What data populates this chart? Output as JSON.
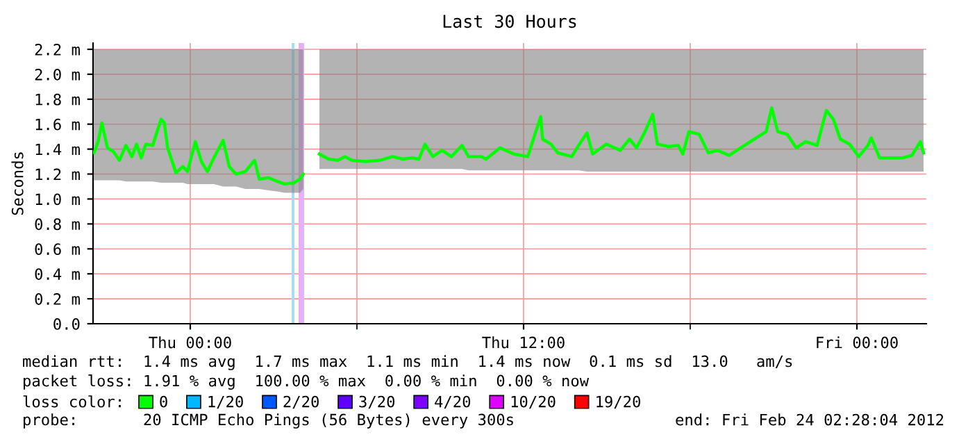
{
  "chart_data": {
    "type": "line",
    "title": "Last 30 Hours",
    "ylabel": "Seconds",
    "legend_title": "loss color:",
    "xlim": [
      "2012-02-22T20:30",
      "2012-02-24T02:30"
    ],
    "xticks": [
      {
        "value": "2012-02-23T00:00",
        "label": "Thu 00:00"
      },
      {
        "value": "2012-02-23T06:00",
        "label": null
      },
      {
        "value": "2012-02-23T12:00",
        "label": "Thu 12:00"
      },
      {
        "value": "2012-02-23T18:00",
        "label": null
      },
      {
        "value": "2012-02-24T00:00",
        "label": "Fri 00:00"
      }
    ],
    "ylim": [
      0,
      2.25
    ],
    "yticks": [
      {
        "value": 0,
        "label": "0.0"
      },
      {
        "value": 0.2,
        "label": "0.2 m"
      },
      {
        "value": 0.4,
        "label": "0.4 m"
      },
      {
        "value": 0.6,
        "label": "0.6 m"
      },
      {
        "value": 0.8,
        "label": "0.8 m"
      },
      {
        "value": 1.0,
        "label": "1.0 m"
      },
      {
        "value": 1.2,
        "label": "1.2 m"
      },
      {
        "value": 1.4,
        "label": "1.4 m"
      },
      {
        "value": 1.6,
        "label": "1.6 m"
      },
      {
        "value": 1.8,
        "label": "1.8 m"
      },
      {
        "value": 2.0,
        "label": "2.0 m"
      },
      {
        "value": 2.2,
        "label": "2.2 m"
      }
    ],
    "grid": true,
    "legend": "bottom",
    "marker": "none",
    "line_style": "solid",
    "series": [
      {
        "name": "0",
        "color": "#00ff00",
        "x": [
          "2012-02-22T20:32",
          "2012-02-22T20:41",
          "2012-02-22T20:49",
          "2012-02-22T21:01",
          "2012-02-22T21:14",
          "2012-02-22T21:27",
          "2012-02-22T21:41",
          "2012-02-22T21:54",
          "2012-02-22T22:04",
          "2012-02-22T22:14",
          "2012-02-22T22:24",
          "2012-02-22T22:39",
          "2012-02-22T22:57",
          "2012-02-22T23:04",
          "2012-02-22T23:11",
          "2012-02-22T23:21",
          "2012-02-22T23:29",
          "2012-02-22T23:44",
          "2012-02-22T23:54",
          "2012-02-23T00:11",
          "2012-02-23T00:24",
          "2012-02-23T00:37",
          "2012-02-23T00:51",
          "2012-02-23T01:11",
          "2012-02-23T01:24",
          "2012-02-23T01:39",
          "2012-02-23T01:59",
          "2012-02-23T02:19",
          "2012-02-23T02:29",
          "2012-02-23T02:49",
          "2012-02-23T03:09",
          "2012-02-23T03:24",
          "2012-02-23T03:44",
          "2012-02-23T03:57",
          "2012-02-23T04:04",
          "2012-02-23T04:20",
          "2012-02-23T04:39",
          "2012-02-23T04:59",
          "2012-02-23T05:19",
          "2012-02-23T05:34",
          "2012-02-23T05:49",
          "2012-02-23T06:19",
          "2012-02-23T06:49",
          "2012-02-23T07:17",
          "2012-02-23T07:39",
          "2012-02-23T07:59",
          "2012-02-23T08:14",
          "2012-02-23T08:27",
          "2012-02-23T08:44",
          "2012-02-23T09:04",
          "2012-02-23T09:24",
          "2012-02-23T09:47",
          "2012-02-23T10:01",
          "2012-02-23T10:29",
          "2012-02-23T10:39",
          "2012-02-23T11:09",
          "2012-02-23T11:39",
          "2012-02-23T12:09",
          "2012-02-23T12:37",
          "2012-02-23T12:41",
          "2012-02-23T12:59",
          "2012-02-23T13:14",
          "2012-02-23T13:44",
          "2012-02-23T13:59",
          "2012-02-23T14:17",
          "2012-02-23T14:29",
          "2012-02-23T14:59",
          "2012-02-23T15:29",
          "2012-02-23T15:49",
          "2012-02-23T16:04",
          "2012-02-23T16:21",
          "2012-02-23T16:39",
          "2012-02-23T16:49",
          "2012-02-23T17:14",
          "2012-02-23T17:34",
          "2012-02-23T17:44",
          "2012-02-23T17:57",
          "2012-02-23T18:19",
          "2012-02-23T18:39",
          "2012-02-23T18:59",
          "2012-02-23T19:24",
          "2012-02-23T19:49",
          "2012-02-23T20:14",
          "2012-02-23T20:44",
          "2012-02-23T20:56",
          "2012-02-23T21:09",
          "2012-02-23T21:29",
          "2012-02-23T21:49",
          "2012-02-23T22:09",
          "2012-02-23T22:34",
          "2012-02-23T22:54",
          "2012-02-23T23:09",
          "2012-02-23T23:24",
          "2012-02-23T23:44",
          "2012-02-24T00:04",
          "2012-02-24T00:24",
          "2012-02-24T00:31",
          "2012-02-24T00:49",
          "2012-02-24T01:14",
          "2012-02-24T01:39",
          "2012-02-24T01:59",
          "2012-02-24T02:17",
          "2012-02-24T02:24"
        ],
        "values": [
          1.37,
          1.46,
          1.61,
          1.41,
          1.38,
          1.31,
          1.43,
          1.34,
          1.44,
          1.33,
          1.44,
          1.43,
          1.64,
          1.61,
          1.41,
          1.3,
          1.21,
          1.26,
          1.22,
          1.46,
          1.3,
          1.22,
          1.33,
          1.47,
          1.26,
          1.2,
          1.22,
          1.31,
          1.16,
          1.17,
          1.14,
          1.12,
          1.13,
          1.16,
          1.2,
          null,
          1.36,
          1.32,
          1.31,
          1.34,
          1.31,
          1.3,
          1.31,
          1.34,
          1.32,
          1.33,
          1.32,
          1.44,
          1.34,
          1.39,
          1.34,
          1.43,
          1.34,
          1.34,
          1.32,
          1.41,
          1.36,
          1.34,
          1.66,
          1.48,
          1.44,
          1.37,
          1.34,
          1.43,
          1.53,
          1.36,
          1.44,
          1.39,
          1.48,
          1.41,
          1.53,
          1.68,
          1.44,
          1.42,
          1.43,
          1.36,
          1.54,
          1.52,
          1.37,
          1.39,
          1.35,
          1.41,
          1.47,
          1.54,
          1.73,
          1.54,
          1.52,
          1.41,
          1.46,
          1.43,
          1.71,
          1.64,
          1.48,
          1.44,
          1.34,
          1.43,
          1.49,
          1.33,
          1.33,
          1.33,
          1.35,
          1.46,
          1.37
        ],
        "lower": [
          1.15,
          1.15,
          1.15,
          1.15,
          1.15,
          1.15,
          1.14,
          1.14,
          1.14,
          1.14,
          1.14,
          1.14,
          1.13,
          1.13,
          1.13,
          1.13,
          1.13,
          1.13,
          1.12,
          1.12,
          1.12,
          1.12,
          1.12,
          1.1,
          1.1,
          1.1,
          1.08,
          1.08,
          1.08,
          1.07,
          1.06,
          1.05,
          1.05,
          1.05,
          1.08,
          null,
          1.24,
          1.24,
          1.24,
          1.24,
          1.24,
          1.24,
          1.24,
          1.24,
          1.24,
          1.24,
          1.24,
          1.24,
          1.24,
          1.24,
          1.24,
          1.24,
          1.23,
          1.23,
          1.23,
          1.23,
          1.23,
          1.23,
          1.23,
          1.23,
          1.23,
          1.23,
          1.23,
          1.23,
          1.22,
          1.22,
          1.22,
          1.22,
          1.22,
          1.22,
          1.22,
          1.22,
          1.22,
          1.22,
          1.22,
          1.22,
          1.22,
          1.22,
          1.22,
          1.22,
          1.22,
          1.22,
          1.22,
          1.22,
          1.22,
          1.22,
          1.22,
          1.22,
          1.22,
          1.22,
          1.22,
          1.22,
          1.22,
          1.22,
          1.22,
          1.22,
          1.22,
          1.22,
          1.22,
          1.22,
          1.22,
          1.22,
          1.22
        ],
        "upper": [
          2.2,
          2.2,
          2.2,
          2.2,
          2.2,
          2.2,
          2.2,
          2.2,
          2.2,
          2.2,
          2.2,
          2.2,
          2.2,
          2.2,
          2.2,
          2.2,
          2.2,
          2.2,
          2.2,
          2.2,
          2.2,
          2.2,
          2.2,
          2.2,
          2.2,
          2.2,
          2.2,
          2.2,
          2.2,
          2.2,
          2.2,
          2.2,
          2.2,
          2.2,
          2.2,
          null,
          2.2,
          2.2,
          2.2,
          2.2,
          2.2,
          2.2,
          2.2,
          2.2,
          2.2,
          2.2,
          2.2,
          2.2,
          2.2,
          2.2,
          2.2,
          2.2,
          2.2,
          2.2,
          2.2,
          2.2,
          2.2,
          2.2,
          2.2,
          2.2,
          2.2,
          2.2,
          2.2,
          2.2,
          2.2,
          2.2,
          2.2,
          2.2,
          2.2,
          2.2,
          2.2,
          2.2,
          2.2,
          2.2,
          2.2,
          2.2,
          2.2,
          2.2,
          2.2,
          2.2,
          2.2,
          2.2,
          2.2,
          2.2,
          2.2,
          2.2,
          2.2,
          2.2,
          2.2,
          2.2,
          2.2,
          2.2,
          2.2,
          2.2,
          2.2,
          2.2,
          2.2,
          2.2,
          2.2,
          2.2,
          2.2,
          2.2,
          2.2
        ]
      },
      {
        "name": "1/20",
        "color": "#00b8ff"
      },
      {
        "name": "2/20",
        "color": "#0059ff"
      },
      {
        "name": "3/20",
        "color": "#5e00ff"
      },
      {
        "name": "4/20",
        "color": "#7e00ff"
      },
      {
        "name": "10/20",
        "color": "#dd00ff"
      },
      {
        "name": "19/20",
        "color": "#ff0000"
      }
    ],
    "bands": [
      {
        "axis": "x",
        "from": "2012-02-23T03:39",
        "to": "2012-02-23T03:45",
        "color": "#a6dcf6"
      },
      {
        "axis": "x",
        "from": "2012-02-23T03:54",
        "to": "2012-02-23T04:06",
        "color": "#e6b0f4"
      }
    ],
    "annotations": [
      "median rtt:  1.4 ms avg  1.7 ms max  1.1 ms min  1.4 ms now  0.1 ms sd  13.0   am/s",
      "packet loss: 1.91 % avg  100.00 % max  0.00 % min  0.00 % now",
      "probe:       20 ICMP Echo Pings (56 Bytes) every 300s",
      "end: Fri Feb 24 02:28:04 2012"
    ]
  }
}
